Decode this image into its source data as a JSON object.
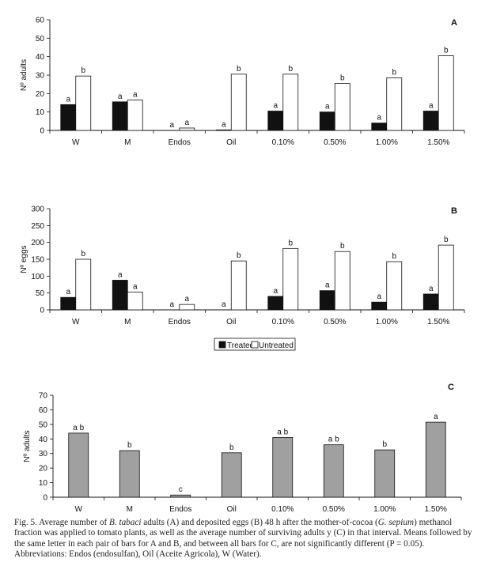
{
  "figure": {
    "legend": {
      "treated": "Treated",
      "untreated": "Untreated"
    }
  },
  "chart_data": [
    {
      "type": "bar",
      "panel_letter": "A",
      "ylabel": "Nº adults",
      "ylim": [
        0,
        60
      ],
      "yticks": [
        0,
        10,
        20,
        30,
        40,
        50,
        60
      ],
      "categories": [
        "W",
        "M",
        "Endos",
        "Oil",
        "0.10%",
        "0.50%",
        "1.00%",
        "1.50%"
      ],
      "series": [
        {
          "name": "Treated",
          "color": "#111111",
          "values": [
            14,
            15.5,
            0,
            0.3,
            10.5,
            10,
            4,
            10.5
          ],
          "labels": [
            "a",
            "a",
            "a",
            "a",
            "a",
            "a",
            "a",
            "a"
          ]
        },
        {
          "name": "Untreated",
          "color": "#ffffff",
          "values": [
            29.5,
            16.5,
            1.3,
            30.5,
            30.5,
            25.5,
            28.5,
            40.5
          ],
          "labels": [
            "b",
            "a",
            "a",
            "b",
            "b",
            "b",
            "b",
            "b"
          ]
        }
      ]
    },
    {
      "type": "bar",
      "panel_letter": "B",
      "ylabel": "Nº eggs",
      "ylim": [
        0,
        300
      ],
      "yticks": [
        0,
        50,
        100,
        150,
        200,
        250,
        300
      ],
      "categories": [
        "W",
        "M",
        "Endos",
        "Oil",
        "0.10%",
        "0.50%",
        "1.00%",
        "1.50%"
      ],
      "series": [
        {
          "name": "Treated",
          "color": "#111111",
          "values": [
            37,
            88,
            0,
            0,
            40,
            57,
            23,
            47
          ],
          "labels": [
            "a",
            "a",
            "a",
            "a",
            "a",
            "a",
            "a",
            "a"
          ]
        },
        {
          "name": "Untreated",
          "color": "#ffffff",
          "values": [
            150,
            53,
            16,
            145,
            182,
            173,
            143,
            192
          ],
          "labels": [
            "b",
            "a",
            "a",
            "b",
            "b",
            "b",
            "b",
            "b"
          ]
        }
      ]
    },
    {
      "type": "bar",
      "panel_letter": "C",
      "ylabel": "Nº adults",
      "ylim": [
        0,
        70
      ],
      "yticks": [
        0,
        10,
        20,
        30,
        40,
        50,
        60,
        70
      ],
      "categories": [
        "W",
        "M",
        "Endos",
        "Oil",
        "0.10%",
        "0.50%",
        "1.00%",
        "1.50%"
      ],
      "series": [
        {
          "name": "",
          "color": "#a0a0a0",
          "values": [
            44,
            32,
            1.5,
            30.5,
            41,
            36,
            32.5,
            51.5
          ],
          "labels": [
            "a b",
            "b",
            "c",
            "b",
            "a b",
            "a b",
            "b",
            "a"
          ]
        }
      ]
    }
  ],
  "caption": {
    "fig_label": "Fig. 5. Average number of ",
    "species": "B. tabaci",
    "part2": " adults (A) and deposited eggs (B) 48 h after the mother-of-cocoa (",
    "plant": "G. sepium",
    "part3": ") methanol fraction was applied to tomato plants, as well as the average number of surviving adults y (C) in that interval. Means followed by the same letter in each pair of bars for A and B, and between all bars for C, are not significantly different (P = 0.05). Abbreviations: Endos (endosulfan), Oil (Aceite Agricola), W (Water)."
  }
}
